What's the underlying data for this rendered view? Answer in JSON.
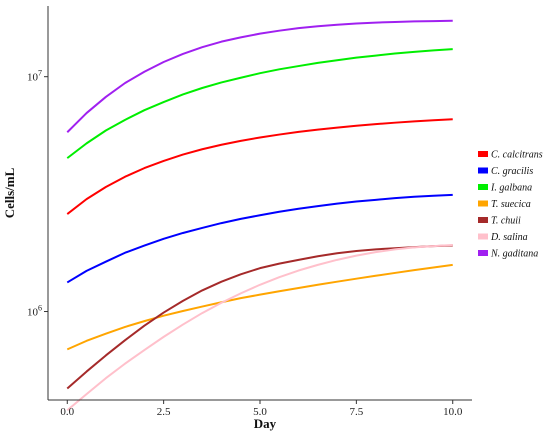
{
  "chart_data": {
    "type": "line",
    "title": "",
    "xlabel": "Day",
    "ylabel": "Cells/mL",
    "y_scale": "log",
    "xlim": [
      -0.5,
      10.5
    ],
    "ylim": [
      420000,
      20000000
    ],
    "x_ticks": [
      0.0,
      2.5,
      5.0,
      7.5,
      10.0
    ],
    "x_tick_labels": [
      "0.0",
      "2.5",
      "5.0",
      "7.5",
      "10.0"
    ],
    "y_ticks": [
      1000000,
      10000000
    ],
    "y_tick_labels": [
      {
        "base": "10",
        "exp": "6"
      },
      {
        "base": "10",
        "exp": "7"
      }
    ],
    "grid": false,
    "legend_position": "right",
    "x": [
      0,
      0.5,
      1,
      1.5,
      2,
      2.5,
      3,
      3.5,
      4,
      4.5,
      5,
      5.5,
      6,
      6.5,
      7,
      7.5,
      8,
      8.5,
      9,
      9.5,
      10
    ],
    "series": [
      {
        "name": "C. calcitrans",
        "color": "#ff0000",
        "values": [
          2600000,
          3010000,
          3390000,
          3750000,
          4080000,
          4380000,
          4660000,
          4910000,
          5130000,
          5330000,
          5510000,
          5670000,
          5820000,
          5950000,
          6070000,
          6180000,
          6280000,
          6370000,
          6450000,
          6520000,
          6590000
        ]
      },
      {
        "name": "C. gracilis",
        "color": "#0000ff",
        "values": [
          1330000,
          1490000,
          1630000,
          1780000,
          1910000,
          2040000,
          2160000,
          2270000,
          2380000,
          2480000,
          2570000,
          2660000,
          2740000,
          2810000,
          2880000,
          2940000,
          2990000,
          3040000,
          3080000,
          3110000,
          3140000
        ]
      },
      {
        "name": "I. galbana",
        "color": "#00ee00",
        "values": [
          4500000,
          5200000,
          5900000,
          6550000,
          7200000,
          7800000,
          8400000,
          8950000,
          9450000,
          9900000,
          10350000,
          10750000,
          11100000,
          11450000,
          11750000,
          12050000,
          12300000,
          12550000,
          12750000,
          12950000,
          13100000
        ]
      },
      {
        "name": "T. suecica",
        "color": "#ffa500",
        "values": [
          690000,
          750000,
          805000,
          860000,
          910000,
          960000,
          1005000,
          1050000,
          1095000,
          1140000,
          1180000,
          1220000,
          1260000,
          1300000,
          1340000,
          1380000,
          1420000,
          1460000,
          1500000,
          1540000,
          1580000
        ]
      },
      {
        "name": "T. chuii",
        "color": "#a52a2a",
        "values": [
          470000,
          555000,
          650000,
          755000,
          870000,
          990000,
          1110000,
          1230000,
          1340000,
          1440000,
          1530000,
          1600000,
          1660000,
          1720000,
          1770000,
          1810000,
          1840000,
          1860000,
          1880000,
          1900000,
          1910000
        ]
      },
      {
        "name": "D. salina",
        "color": "#ffc0cb",
        "values": [
          380000,
          445000,
          520000,
          600000,
          685000,
          780000,
          880000,
          985000,
          1090000,
          1195000,
          1300000,
          1400000,
          1495000,
          1580000,
          1660000,
          1730000,
          1790000,
          1840000,
          1875000,
          1900000,
          1920000
        ]
      },
      {
        "name": "N. gaditana",
        "color": "#a020f0",
        "values": [
          5800000,
          7000000,
          8200000,
          9400000,
          10500000,
          11550000,
          12500000,
          13350000,
          14100000,
          14700000,
          15250000,
          15700000,
          16100000,
          16400000,
          16650000,
          16850000,
          17000000,
          17100000,
          17200000,
          17250000,
          17300000
        ]
      }
    ]
  }
}
